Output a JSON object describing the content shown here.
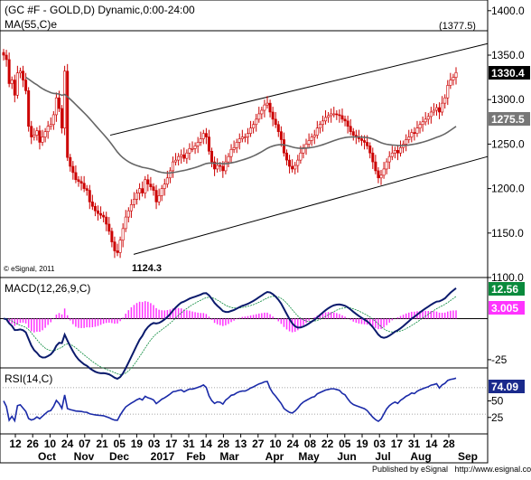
{
  "chart_data": {
    "type": "candlestick",
    "title": "(GC #F - GOLD,D) Dynamic,0:00-24:00",
    "ma_label": "MA(55,C)e",
    "copyright": "© eSignal, 2011",
    "footer": "Published by eSignal   http://www.esignal.com",
    "price_axis": {
      "ticks": [
        1400,
        1350,
        1300,
        1250,
        1200,
        1150,
        1100
      ],
      "tick_labels": [
        "1400.0",
        "1350.0",
        "1300.0",
        "1250.0",
        "1200.0",
        "1150.0",
        "1100.0"
      ],
      "ylim": [
        1100,
        1412
      ]
    },
    "annotations": {
      "resistance_label": "(1377.5)",
      "resistance_value": 1377.5,
      "low_label": "1124.3",
      "low_value": 1124.3,
      "last_price_label": "1330.4",
      "last_price": 1330.4,
      "ma_last_label": "1275.5",
      "ma_last": 1275.5
    },
    "closes": [
      1350,
      1345,
      1318,
      1322,
      1305,
      1330,
      1332,
      1322,
      1310,
      1270,
      1258,
      1260,
      1265,
      1252,
      1258,
      1264,
      1270,
      1272,
      1283,
      1302,
      1290,
      1268,
      1332,
      1235,
      1225,
      1218,
      1210,
      1208,
      1206,
      1200,
      1198,
      1185,
      1180,
      1175,
      1172,
      1170,
      1168,
      1160,
      1152,
      1140,
      1130,
      1128,
      1142,
      1155,
      1168,
      1175,
      1182,
      1188,
      1195,
      1200,
      1195,
      1210,
      1205,
      1202,
      1198,
      1185,
      1192,
      1200,
      1205,
      1212,
      1220,
      1230,
      1232,
      1236,
      1238,
      1234,
      1240,
      1245,
      1245,
      1248,
      1252,
      1256,
      1262,
      1258,
      1242,
      1230,
      1222,
      1226,
      1225,
      1220,
      1230,
      1236,
      1244,
      1246,
      1252,
      1256,
      1258,
      1258,
      1262,
      1268,
      1272,
      1278,
      1284,
      1288,
      1294,
      1296,
      1286,
      1278,
      1272,
      1264,
      1255,
      1240,
      1232,
      1225,
      1222,
      1226,
      1232,
      1240,
      1246,
      1250,
      1254,
      1258,
      1260,
      1268,
      1272,
      1276,
      1280,
      1282,
      1284,
      1284,
      1283,
      1282,
      1278,
      1276,
      1270,
      1264,
      1260,
      1258,
      1256,
      1254,
      1252,
      1248,
      1240,
      1230,
      1220,
      1212,
      1215,
      1222,
      1230,
      1236,
      1240,
      1243,
      1240,
      1246,
      1250,
      1255,
      1258,
      1263,
      1262,
      1268,
      1272,
      1275,
      1278,
      1281,
      1286,
      1288,
      1291,
      1286,
      1296,
      1302,
      1316,
      1322,
      1325,
      1330.4
    ],
    "ma55_endpoints": {
      "start": 1325,
      "low": 1205,
      "end": 1275.5
    },
    "channel": {
      "upper": {
        "from": 1260,
        "to": 1363
      },
      "lower": {
        "from": 1126,
        "to": 1236
      }
    },
    "macd": {
      "label": "MACD(12,26,9,C)",
      "ticks": [
        -25
      ],
      "tick_labels": [
        "-25"
      ],
      "ylim": [
        -30,
        25
      ],
      "last_macd": 12.56,
      "last_macd_label": "12.56",
      "last_hist": 3.005,
      "last_hist_label": "3.005"
    },
    "rsi": {
      "label": "RSI(14,C)",
      "ticks": [
        50,
        25
      ],
      "tick_labels": [
        "50",
        "25"
      ],
      "ylim": [
        0,
        100
      ],
      "last": 74.09,
      "last_label": "74.09"
    },
    "x_axis": {
      "day_labels": [
        "12",
        "26",
        "10",
        "24",
        "07",
        "21",
        "05",
        "19",
        "03",
        "17",
        "31",
        "14",
        "28",
        "13",
        "27",
        "10",
        "24",
        "08",
        "22",
        "05",
        "19",
        "03",
        "17",
        "31",
        "14",
        "28"
      ],
      "month_labels": [
        "Oct",
        "Nov",
        "Dec",
        "2017",
        "Feb",
        "Mar",
        "Apr",
        "May",
        "Jun",
        "Jul",
        "Aug",
        "Sep"
      ]
    }
  }
}
